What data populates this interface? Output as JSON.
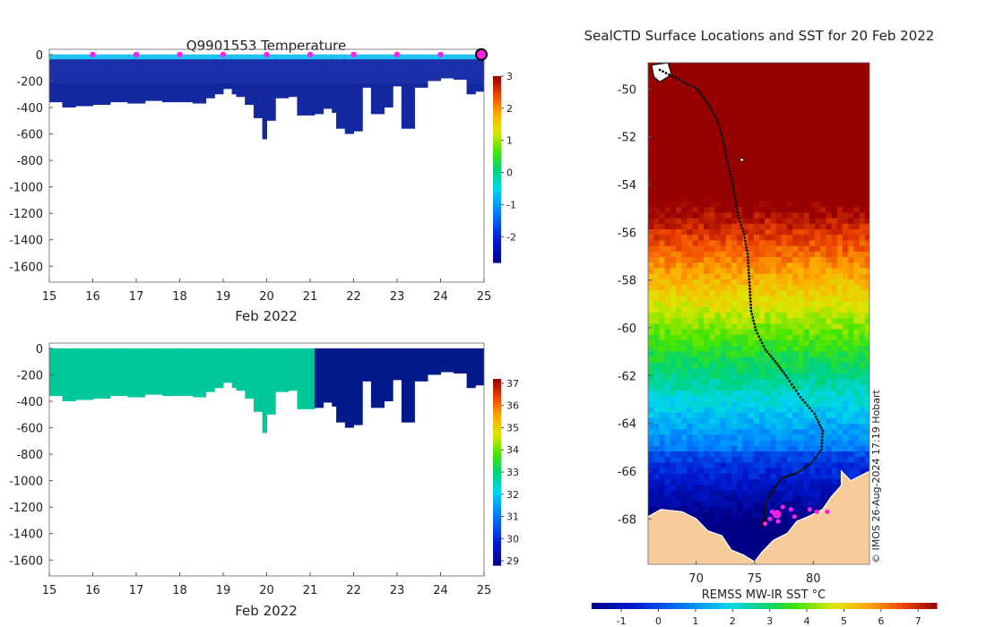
{
  "colors": {
    "deep_blue": "#1a2fa8",
    "navy": "#001a8c",
    "surface_cyan": "#1ec3ee",
    "teal": "#00c89a",
    "magenta": "#ff1ee6",
    "land": "#f8cc9a",
    "track": "#111111"
  },
  "chart_data": [
    {
      "id": "temperature-profile",
      "type": "heatmap",
      "title": "Q9901553  Temperature",
      "xlabel": "Feb 2022",
      "ylabel": "",
      "x_ticks": [
        15,
        16,
        17,
        18,
        19,
        20,
        21,
        22,
        23,
        24,
        25
      ],
      "y_ticks": [
        0,
        -200,
        -400,
        -600,
        -800,
        -1000,
        -1200,
        -1400,
        -1600
      ],
      "xlim": [
        15,
        25
      ],
      "ylim": [
        -1720,
        40
      ],
      "cast_x": [
        15,
        15.3,
        15.6,
        16,
        16.4,
        16.8,
        17.2,
        17.6,
        18,
        18.3,
        18.6,
        18.8,
        19.0,
        19.2,
        19.3,
        19.5,
        19.6,
        19.7,
        19.9,
        20.0,
        20.2,
        20.5,
        20.7,
        21.1,
        21.3,
        21.5,
        21.6,
        21.8,
        22.0,
        22.2,
        22.4,
        22.7,
        22.9,
        23.1,
        23.4,
        23.7,
        24.0,
        24.3,
        24.6,
        24.8,
        25.0
      ],
      "cast_depth": [
        -360,
        -400,
        -390,
        -380,
        -360,
        -370,
        -350,
        -360,
        -360,
        -370,
        -330,
        -300,
        -260,
        -300,
        -320,
        -380,
        -380,
        -480,
        -640,
        -500,
        -330,
        -320,
        -460,
        -450,
        -410,
        -440,
        -560,
        -600,
        -580,
        -250,
        -450,
        -400,
        -240,
        -560,
        -250,
        -200,
        -180,
        -190,
        -300,
        -280,
        -260
      ],
      "surface_layer_depth": 40,
      "colorbar": {
        "min": -2.8,
        "max": 3,
        "ticks": [
          -2,
          -1,
          0,
          1,
          2,
          3
        ]
      },
      "markers_x": [
        16,
        17,
        18,
        19,
        20,
        21,
        22,
        23,
        24
      ],
      "latest_marker_x": 25
    },
    {
      "id": "salinity-profile",
      "type": "heatmap",
      "title": "",
      "xlabel": "Feb 2022",
      "ylabel": "",
      "x_ticks": [
        15,
        16,
        17,
        18,
        19,
        20,
        21,
        22,
        23,
        24,
        25
      ],
      "y_ticks": [
        0,
        -200,
        -400,
        -600,
        -800,
        -1000,
        -1200,
        -1400,
        -1600
      ],
      "xlim": [
        15,
        25
      ],
      "ylim": [
        -1720,
        40
      ],
      "cast_x": [
        15,
        15.3,
        15.6,
        16,
        16.4,
        16.8,
        17.2,
        17.6,
        18,
        18.3,
        18.6,
        18.8,
        19.0,
        19.2,
        19.3,
        19.5,
        19.6,
        19.7,
        19.9,
        20.0,
        20.2,
        20.5,
        20.7,
        21.1,
        21.3,
        21.5,
        21.6,
        21.8,
        22.0,
        22.2,
        22.4,
        22.7,
        22.9,
        23.1,
        23.4,
        23.7,
        24.0,
        24.3,
        24.6,
        24.8,
        25.0
      ],
      "cast_depth": [
        -360,
        -400,
        -390,
        -380,
        -360,
        -370,
        -350,
        -360,
        -360,
        -370,
        -330,
        -300,
        -260,
        -300,
        -320,
        -380,
        -380,
        -480,
        -640,
        -500,
        -330,
        -320,
        -460,
        -450,
        -410,
        -440,
        -560,
        -600,
        -580,
        -250,
        -450,
        -400,
        -240,
        -560,
        -250,
        -200,
        -180,
        -190,
        -300,
        -280,
        -260
      ],
      "split_x": 20.72,
      "colorbar": {
        "min": 28.8,
        "max": 37.2,
        "ticks": [
          29,
          30,
          31,
          32,
          33,
          34,
          35,
          36,
          37
        ]
      }
    },
    {
      "id": "sst-map",
      "type": "heatmap",
      "title": "SealCTD Surface Locations and SST for 20 Feb 2022",
      "xlabel": "REMSS MW-IR SST °C",
      "x_ticks": [
        70,
        75,
        80
      ],
      "y_ticks": [
        -50,
        -52,
        -54,
        -56,
        -58,
        -60,
        -62,
        -64,
        -66,
        -68
      ],
      "xlim": [
        65.9,
        84.8
      ],
      "ylim": [
        -69.9,
        -48.9
      ],
      "colorbar": {
        "min": -1.8,
        "max": 7.5,
        "ticks": [
          -1,
          0,
          1,
          2,
          3,
          4,
          5,
          6,
          7
        ]
      },
      "credit": "© IMOS 26-Aug-2024 17:19 Hobart",
      "track": [
        [
          66.9,
          -49.2
        ],
        [
          68.5,
          -49.6
        ],
        [
          70.1,
          -50.0
        ],
        [
          71.0,
          -50.6
        ],
        [
          71.8,
          -51.3
        ],
        [
          72.3,
          -52.1
        ],
        [
          72.6,
          -52.9
        ],
        [
          73.0,
          -53.7
        ],
        [
          73.3,
          -54.5
        ],
        [
          73.6,
          -55.3
        ],
        [
          74.1,
          -56.1
        ],
        [
          74.4,
          -56.9
        ],
        [
          74.5,
          -57.7
        ],
        [
          74.6,
          -58.5
        ],
        [
          74.7,
          -59.3
        ],
        [
          75.1,
          -60.1
        ],
        [
          75.9,
          -60.9
        ],
        [
          76.9,
          -61.5
        ],
        [
          77.8,
          -62.1
        ],
        [
          78.9,
          -62.9
        ],
        [
          80.1,
          -63.6
        ],
        [
          80.8,
          -64.3
        ],
        [
          80.7,
          -65.1
        ],
        [
          79.8,
          -65.7
        ],
        [
          78.5,
          -66.1
        ],
        [
          77.3,
          -66.3
        ],
        [
          76.6,
          -66.8
        ],
        [
          76.0,
          -67.3
        ],
        [
          75.8,
          -67.9
        ],
        [
          75.6,
          -68.4
        ]
      ],
      "positions": [
        [
          76.3,
          -68.0
        ],
        [
          77.0,
          -68.1
        ],
        [
          76.5,
          -67.7
        ],
        [
          77.4,
          -67.5
        ],
        [
          78.1,
          -67.6
        ],
        [
          78.4,
          -67.9
        ],
        [
          79.7,
          -67.6
        ],
        [
          80.3,
          -67.7
        ],
        [
          81.2,
          -67.7
        ],
        [
          75.9,
          -68.2
        ]
      ],
      "latest_position": [
        76.9,
        -67.8
      ]
    }
  ]
}
